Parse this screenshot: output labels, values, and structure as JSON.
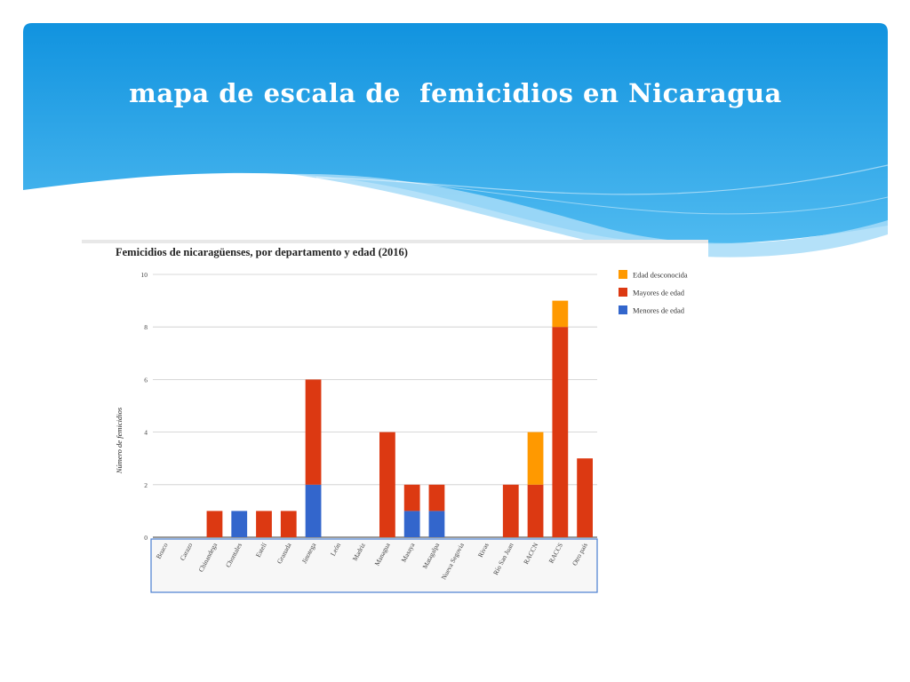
{
  "slide": {
    "title": "mapa de escala de  femicidios en Nicaragua"
  },
  "colors": {
    "banner_top": "#1193df",
    "banner_bottom": "#4fbaf0",
    "wave_light": "#a7dcf8",
    "menores": "#3366cc",
    "mayores": "#dc3912",
    "desconocida": "#ff9900"
  },
  "chart_data": {
    "type": "bar",
    "stacked": true,
    "title": "Femicidios de nicaragüenses, por departamento y edad (2016)",
    "xlabel": "",
    "ylabel": "Número de femicidios",
    "ylim": [
      0,
      10
    ],
    "yticks": [
      0,
      2,
      4,
      6,
      8,
      10
    ],
    "grid": true,
    "legend_position": "right",
    "categories": [
      "Boaco",
      "Carazo",
      "Chinandega",
      "Chontales",
      "Estelí",
      "Granada",
      "Jinotega",
      "León",
      "Madriz",
      "Managua",
      "Masaya",
      "Matagalpa",
      "Nueva Segovia",
      "Rivas",
      "Río San Juan",
      "RACCN",
      "RACCS",
      "Otro país"
    ],
    "series": [
      {
        "name": "Menores de edad",
        "color": "#3366cc",
        "values": [
          0,
          0,
          0,
          1,
          0,
          0,
          2,
          0,
          0,
          0,
          1,
          1,
          0,
          0,
          0,
          0,
          0,
          0
        ]
      },
      {
        "name": "Mayores de edad",
        "color": "#dc3912",
        "values": [
          0,
          0,
          1,
          0,
          1,
          1,
          4,
          0,
          0,
          4,
          1,
          1,
          0,
          0,
          2,
          2,
          8,
          3
        ]
      },
      {
        "name": "Edad desconocida",
        "color": "#ff9900",
        "values": [
          0,
          0,
          0,
          0,
          0,
          0,
          0,
          0,
          0,
          0,
          0,
          0,
          0,
          0,
          0,
          2,
          1,
          0
        ]
      }
    ],
    "legend_order": [
      "Edad desconocida",
      "Mayores de edad",
      "Menores de edad"
    ]
  }
}
